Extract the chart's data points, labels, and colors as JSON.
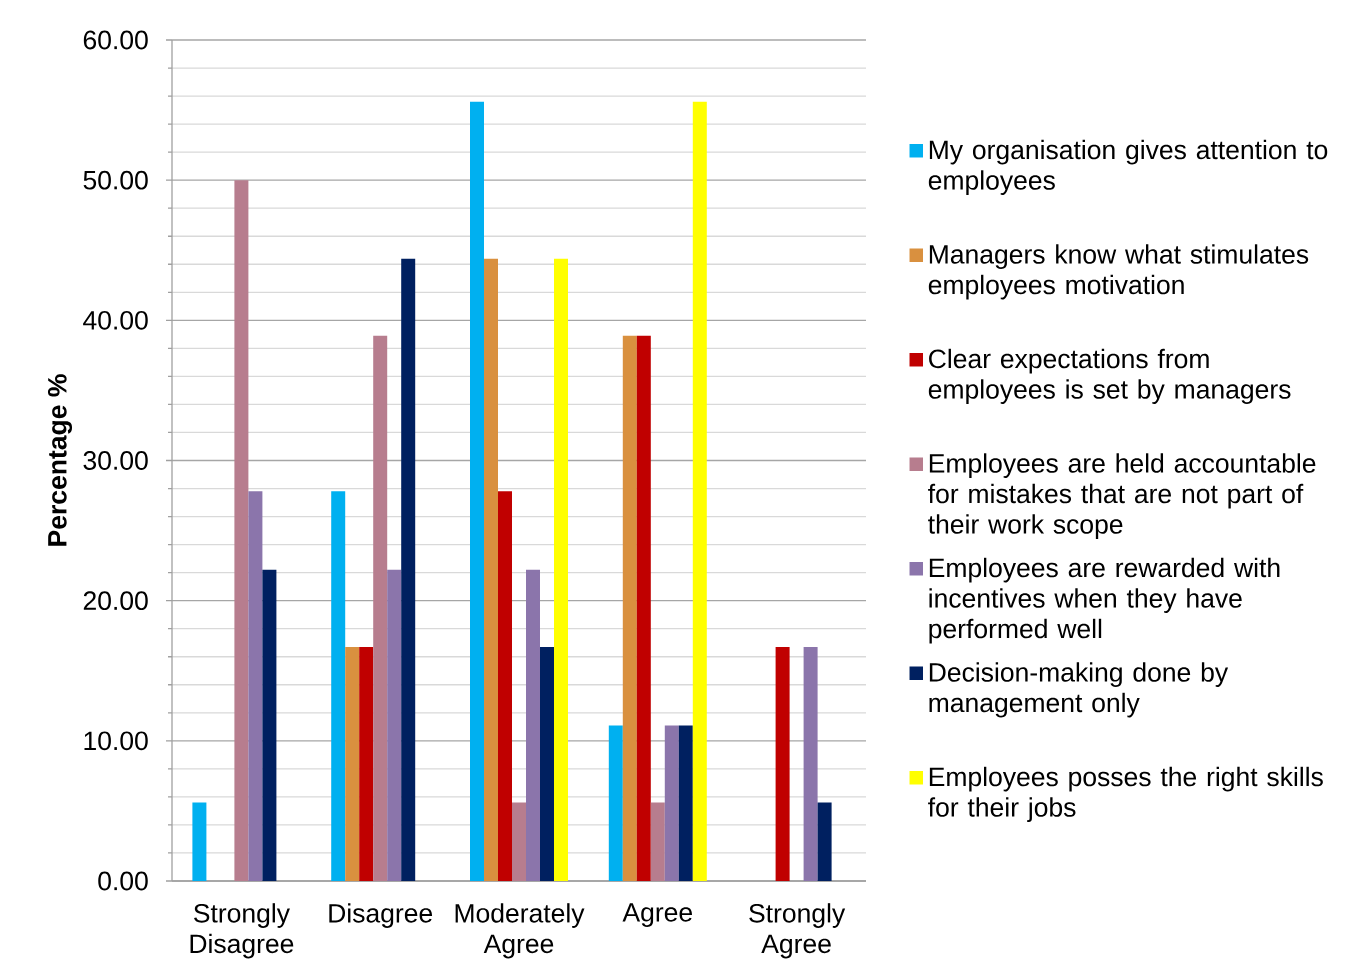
{
  "chart_data": {
    "type": "bar",
    "ylabel": "Percentage %",
    "categories": [
      "Strongly Disagree",
      "Disagree",
      "Moderately Agree",
      "Agree",
      "Strongly Agree"
    ],
    "series": [
      {
        "name": "My organisation gives attention to employees",
        "color": "#00b0f0",
        "values": [
          5.6,
          27.8,
          55.6,
          11.1,
          0
        ]
      },
      {
        "name": "Managers know what stimulates employees motivation",
        "color": "#d9903f",
        "values": [
          0,
          16.7,
          44.4,
          38.9,
          0
        ]
      },
      {
        "name": "Clear expectations from employees is set by managers",
        "color": "#c00000",
        "values": [
          0,
          16.7,
          27.8,
          38.9,
          16.7
        ]
      },
      {
        "name": "Employees are held accountable for mistakes that are not part of their work scope",
        "color": "#b77d8e",
        "values": [
          50,
          38.9,
          5.6,
          5.6,
          0
        ]
      },
      {
        "name": "Employees are rewarded with incentives when they have performed well",
        "color": "#8b75ab",
        "values": [
          27.8,
          22.2,
          22.2,
          11.1,
          16.7
        ]
      },
      {
        "name": "Decision-making done by management only",
        "color": "#002060",
        "values": [
          22.2,
          44.4,
          16.7,
          11.1,
          5.6
        ]
      },
      {
        "name": "Employees posses the right skills for their jobs",
        "color": "#ffff00",
        "values": [
          0,
          0,
          44.4,
          55.6,
          0
        ]
      }
    ],
    "ylim": [
      0,
      60
    ],
    "yticks": [
      {
        "value": 0,
        "label": "0.00"
      },
      {
        "value": 2,
        "label": null
      },
      {
        "value": 4,
        "label": null
      },
      {
        "value": 6,
        "label": null
      },
      {
        "value": 8,
        "label": null
      },
      {
        "value": 10,
        "label": "10.00"
      },
      {
        "value": 12,
        "label": null
      },
      {
        "value": 14,
        "label": null
      },
      {
        "value": 16,
        "label": null
      },
      {
        "value": 18,
        "label": null
      },
      {
        "value": 20,
        "label": "20.00"
      },
      {
        "value": 22,
        "label": null
      },
      {
        "value": 24,
        "label": null
      },
      {
        "value": 26,
        "label": null
      },
      {
        "value": 28,
        "label": null
      },
      {
        "value": 30,
        "label": "30.00"
      },
      {
        "value": 32,
        "label": null
      },
      {
        "value": 34,
        "label": null
      },
      {
        "value": 36,
        "label": null
      },
      {
        "value": 38,
        "label": null
      },
      {
        "value": 40,
        "label": "40.00"
      },
      {
        "value": 42,
        "label": null
      },
      {
        "value": 44,
        "label": null
      },
      {
        "value": 46,
        "label": null
      },
      {
        "value": 48,
        "label": null
      },
      {
        "value": 50,
        "label": "50.00"
      },
      {
        "value": 52,
        "label": null
      },
      {
        "value": 54,
        "label": null
      },
      {
        "value": 56,
        "label": null
      },
      {
        "value": 58,
        "label": null
      },
      {
        "value": 60,
        "label": "60.00"
      }
    ],
    "grid": "y",
    "legend": "right"
  }
}
